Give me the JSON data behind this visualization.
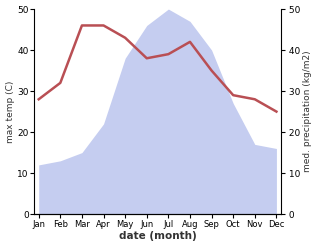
{
  "months": [
    "Jan",
    "Feb",
    "Mar",
    "Apr",
    "May",
    "Jun",
    "Jul",
    "Aug",
    "Sep",
    "Oct",
    "Nov",
    "Dec"
  ],
  "temperature": [
    28,
    32,
    46,
    46,
    43,
    38,
    39,
    42,
    35,
    29,
    28,
    25
  ],
  "precipitation": [
    12,
    13,
    15,
    22,
    38,
    46,
    50,
    47,
    40,
    27,
    17,
    16
  ],
  "temp_color": "#b94f54",
  "precip_fill_color": "#c5cdf0",
  "ylim_left": [
    0,
    50
  ],
  "ylim_right": [
    0,
    50
  ],
  "ylabel_left": "max temp (C)",
  "ylabel_right": "med. precipitation (kg/m2)",
  "xlabel": "date (month)",
  "bg_color": "#ffffff",
  "figsize": [
    3.18,
    2.47
  ],
  "dpi": 100
}
